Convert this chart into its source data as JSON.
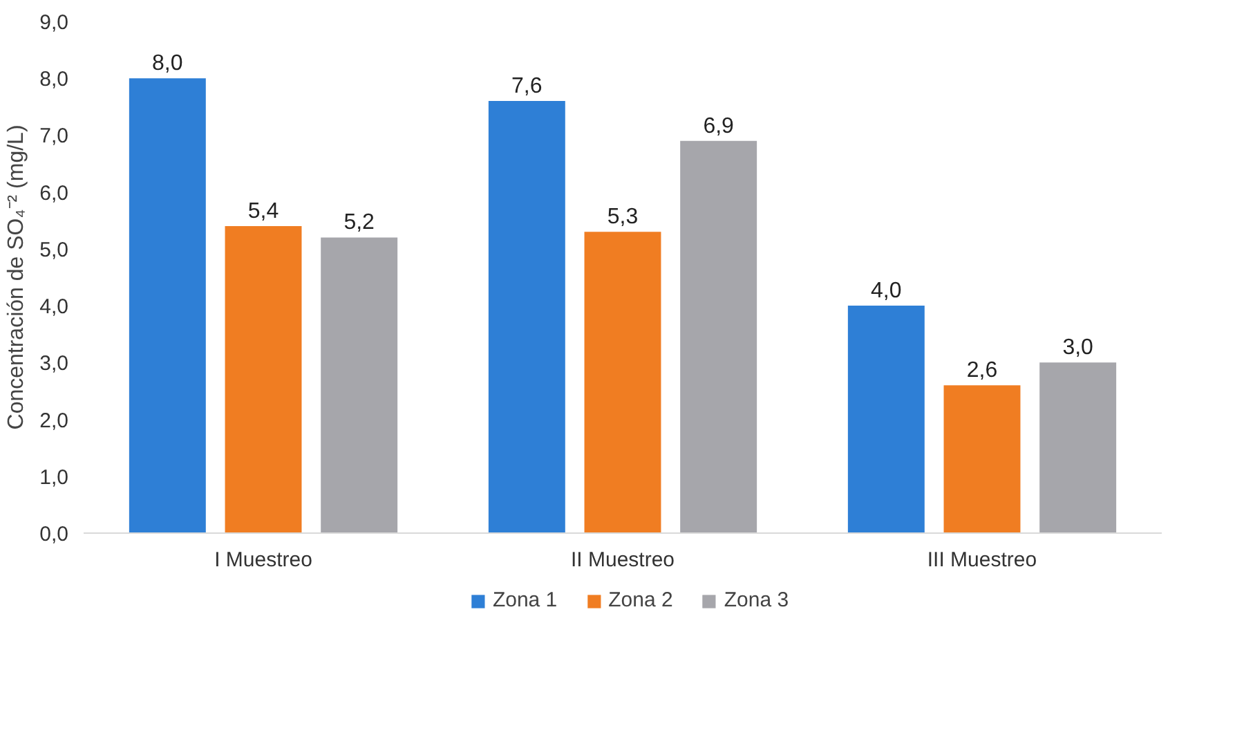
{
  "chart_data": {
    "type": "bar",
    "ylabel": "Concentración de SO₄⁻² (mg/L)",
    "categories": [
      "I Muestreo",
      "II Muestreo",
      "III Muestreo"
    ],
    "series": [
      {
        "name": "Zona 1",
        "color": "#2e7fd6",
        "values": [
          8.0,
          7.6,
          4.0
        ],
        "value_labels": [
          "8,0",
          "7,6",
          "4,0"
        ]
      },
      {
        "name": "Zona 2",
        "color": "#f07d22",
        "values": [
          5.4,
          5.3,
          2.6
        ],
        "value_labels": [
          "5,4",
          "5,3",
          "2,6"
        ]
      },
      {
        "name": "Zona 3",
        "color": "#a6a6ab",
        "values": [
          5.2,
          6.9,
          3.0
        ],
        "value_labels": [
          "5,2",
          "6,9",
          "3,0"
        ]
      }
    ],
    "ylim": [
      0,
      9
    ],
    "yticks": [
      {
        "value": 0,
        "label": "0,0"
      },
      {
        "value": 1,
        "label": "1,0"
      },
      {
        "value": 2,
        "label": "2,0"
      },
      {
        "value": 3,
        "label": "3,0"
      },
      {
        "value": 4,
        "label": "4,0"
      },
      {
        "value": 5,
        "label": "5,0"
      },
      {
        "value": 6,
        "label": "6,0"
      },
      {
        "value": 7,
        "label": "7,0"
      },
      {
        "value": 8,
        "label": "8,0"
      },
      {
        "value": 9,
        "label": "9,0"
      }
    ],
    "grid": false,
    "legend": "bottom"
  }
}
